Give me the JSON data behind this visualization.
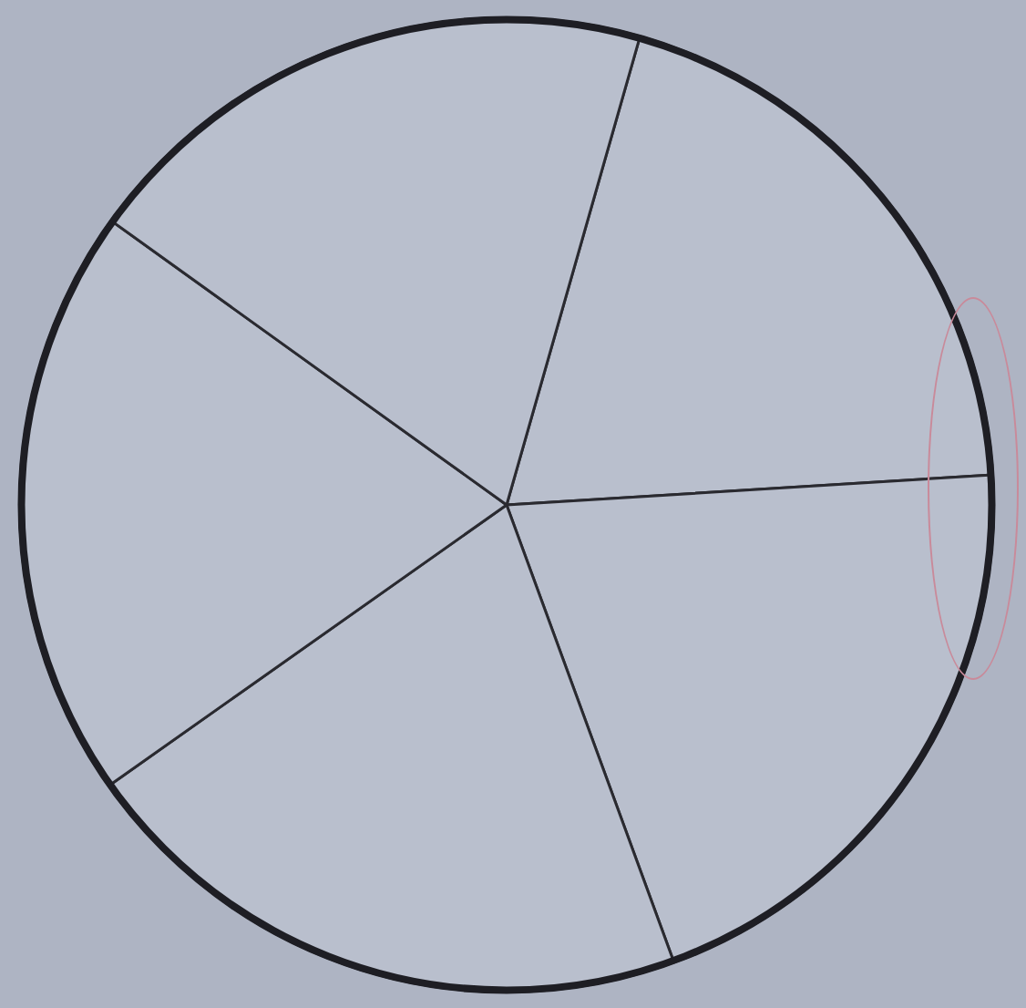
{
  "chart_data": {
    "type": "pie",
    "categories": [
      null,
      null,
      null,
      null,
      null
    ],
    "values": [
      19.6,
      20.4,
      20.8,
      19.7,
      19.5
    ],
    "colors": [
      "#b9bfcd",
      "#b9bfcd",
      "#b9bfcd",
      "#b9bfcd",
      "#b9bfcd"
    ],
    "legend": false
  }
}
